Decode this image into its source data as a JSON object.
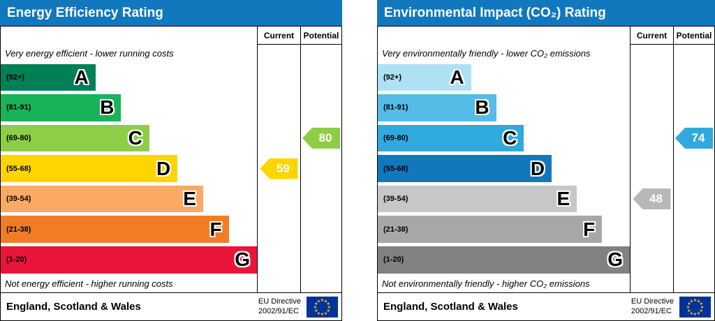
{
  "panels": [
    {
      "title": "Energy Efficiency Rating",
      "header_color": "#1278be",
      "columns": {
        "current": "Current",
        "potential": "Potential"
      },
      "top_caption": "Very energy efficient - lower running costs",
      "bottom_caption": "Not energy efficient - higher running costs",
      "bands": [
        {
          "letter": "A",
          "range": "(92+)",
          "color": "#008054",
          "width_pct": 37
        },
        {
          "letter": "B",
          "range": "(81-91)",
          "color": "#19b459",
          "width_pct": 47
        },
        {
          "letter": "C",
          "range": "(69-80)",
          "color": "#8dce46",
          "width_pct": 58
        },
        {
          "letter": "D",
          "range": "(55-68)",
          "color": "#ffd500",
          "width_pct": 69
        },
        {
          "letter": "E",
          "range": "(39-54)",
          "color": "#fbaa65",
          "width_pct": 79
        },
        {
          "letter": "F",
          "range": "(21-38)",
          "color": "#f07d26",
          "width_pct": 89
        },
        {
          "letter": "G",
          "range": "(1-20)",
          "color": "#e9153b",
          "width_pct": 100
        }
      ],
      "current": {
        "value": 59,
        "band_index": 3,
        "color": "#ffd500"
      },
      "potential": {
        "value": 80,
        "band_index": 2,
        "color": "#8dce46"
      },
      "footer": {
        "region": "England, Scotland & Wales",
        "directive_line1": "EU Directive",
        "directive_line2": "2002/91/EC"
      }
    },
    {
      "title": "Environmental Impact (CO₂) Rating",
      "header_color": "#1278be",
      "columns": {
        "current": "Current",
        "potential": "Potential"
      },
      "top_caption": "Very environmentally friendly - lower CO₂ emissions",
      "bottom_caption": "Not environmentally friendly - higher CO₂ emissions",
      "bands": [
        {
          "letter": "A",
          "range": "(92+)",
          "color": "#aee1f4",
          "width_pct": 37
        },
        {
          "letter": "B",
          "range": "(81-91)",
          "color": "#55bce8",
          "width_pct": 47
        },
        {
          "letter": "C",
          "range": "(69-80)",
          "color": "#30a9de",
          "width_pct": 58
        },
        {
          "letter": "D",
          "range": "(55-68)",
          "color": "#1278be",
          "width_pct": 69
        },
        {
          "letter": "E",
          "range": "(39-54)",
          "color": "#c6c7c9",
          "width_pct": 79
        },
        {
          "letter": "F",
          "range": "(21-38)",
          "color": "#a5a7a9",
          "width_pct": 89
        },
        {
          "letter": "G",
          "range": "(1-20)",
          "color": "#7f8183",
          "width_pct": 100
        }
      ],
      "current": {
        "value": 48,
        "band_index": 4,
        "color": "#b7b8ba"
      },
      "potential": {
        "value": 74,
        "band_index": 2,
        "color": "#30a9de"
      },
      "footer": {
        "region": "England, Scotland & Wales",
        "directive_line1": "EU Directive",
        "directive_line2": "2002/91/EC"
      }
    }
  ],
  "eu_flag": {
    "bg": "#003399",
    "star_color": "#ffcc00"
  },
  "chart_data": [
    {
      "type": "bar",
      "title": "Energy Efficiency Rating",
      "categories": [
        "A (92+)",
        "B (81-91)",
        "C (69-80)",
        "D (55-68)",
        "E (39-54)",
        "F (21-38)",
        "G (1-20)"
      ],
      "series": [
        {
          "name": "Current",
          "values": [
            59
          ],
          "band": "D"
        },
        {
          "name": "Potential",
          "values": [
            80
          ],
          "band": "C"
        }
      ],
      "ylim": [
        1,
        100
      ],
      "annotations": [
        "Very energy efficient - lower running costs",
        "Not energy efficient - higher running costs"
      ],
      "footer": "England, Scotland & Wales — EU Directive 2002/91/EC",
      "legend_position": "none",
      "grid": false
    },
    {
      "type": "bar",
      "title": "Environmental Impact (CO₂) Rating",
      "categories": [
        "A (92+)",
        "B (81-91)",
        "C (69-80)",
        "D (55-68)",
        "E (39-54)",
        "F (21-38)",
        "G (1-20)"
      ],
      "series": [
        {
          "name": "Current",
          "values": [
            48
          ],
          "band": "E"
        },
        {
          "name": "Potential",
          "values": [
            74
          ],
          "band": "C"
        }
      ],
      "ylim": [
        1,
        100
      ],
      "annotations": [
        "Very environmentally friendly - lower CO₂ emissions",
        "Not environmentally friendly - higher CO₂ emissions"
      ],
      "footer": "England, Scotland & Wales — EU Directive 2002/91/EC",
      "legend_position": "none",
      "grid": false
    }
  ]
}
